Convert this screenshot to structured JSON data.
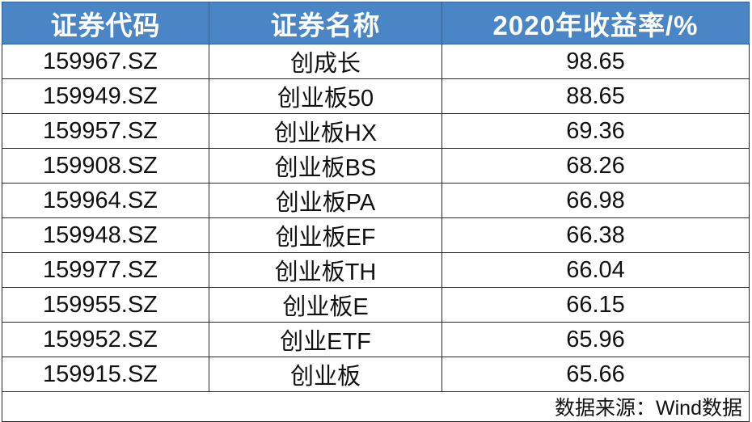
{
  "table": {
    "headers": [
      "证券代码",
      "证券名称",
      "2020年收益率/%"
    ],
    "rows": [
      {
        "code": "159967.SZ",
        "name": "创成长",
        "ret": "98.65"
      },
      {
        "code": "159949.SZ",
        "name": "创业板50",
        "ret": "88.65"
      },
      {
        "code": "159957.SZ",
        "name": "创业板HX",
        "ret": "69.36"
      },
      {
        "code": "159908.SZ",
        "name": "创业板BS",
        "ret": "68.26"
      },
      {
        "code": "159964.SZ",
        "name": "创业板PA",
        "ret": "66.98"
      },
      {
        "code": "159948.SZ",
        "name": "创业板EF",
        "ret": "66.38"
      },
      {
        "code": "159977.SZ",
        "name": "创业板TH",
        "ret": "66.04"
      },
      {
        "code": "159955.SZ",
        "name": "创业板E",
        "ret": "66.15"
      },
      {
        "code": "159952.SZ",
        "name": "创业ETF",
        "ret": "65.96"
      },
      {
        "code": "159915.SZ",
        "name": "创业板",
        "ret": "65.66"
      }
    ],
    "source": "数据来源：Wind数据"
  }
}
